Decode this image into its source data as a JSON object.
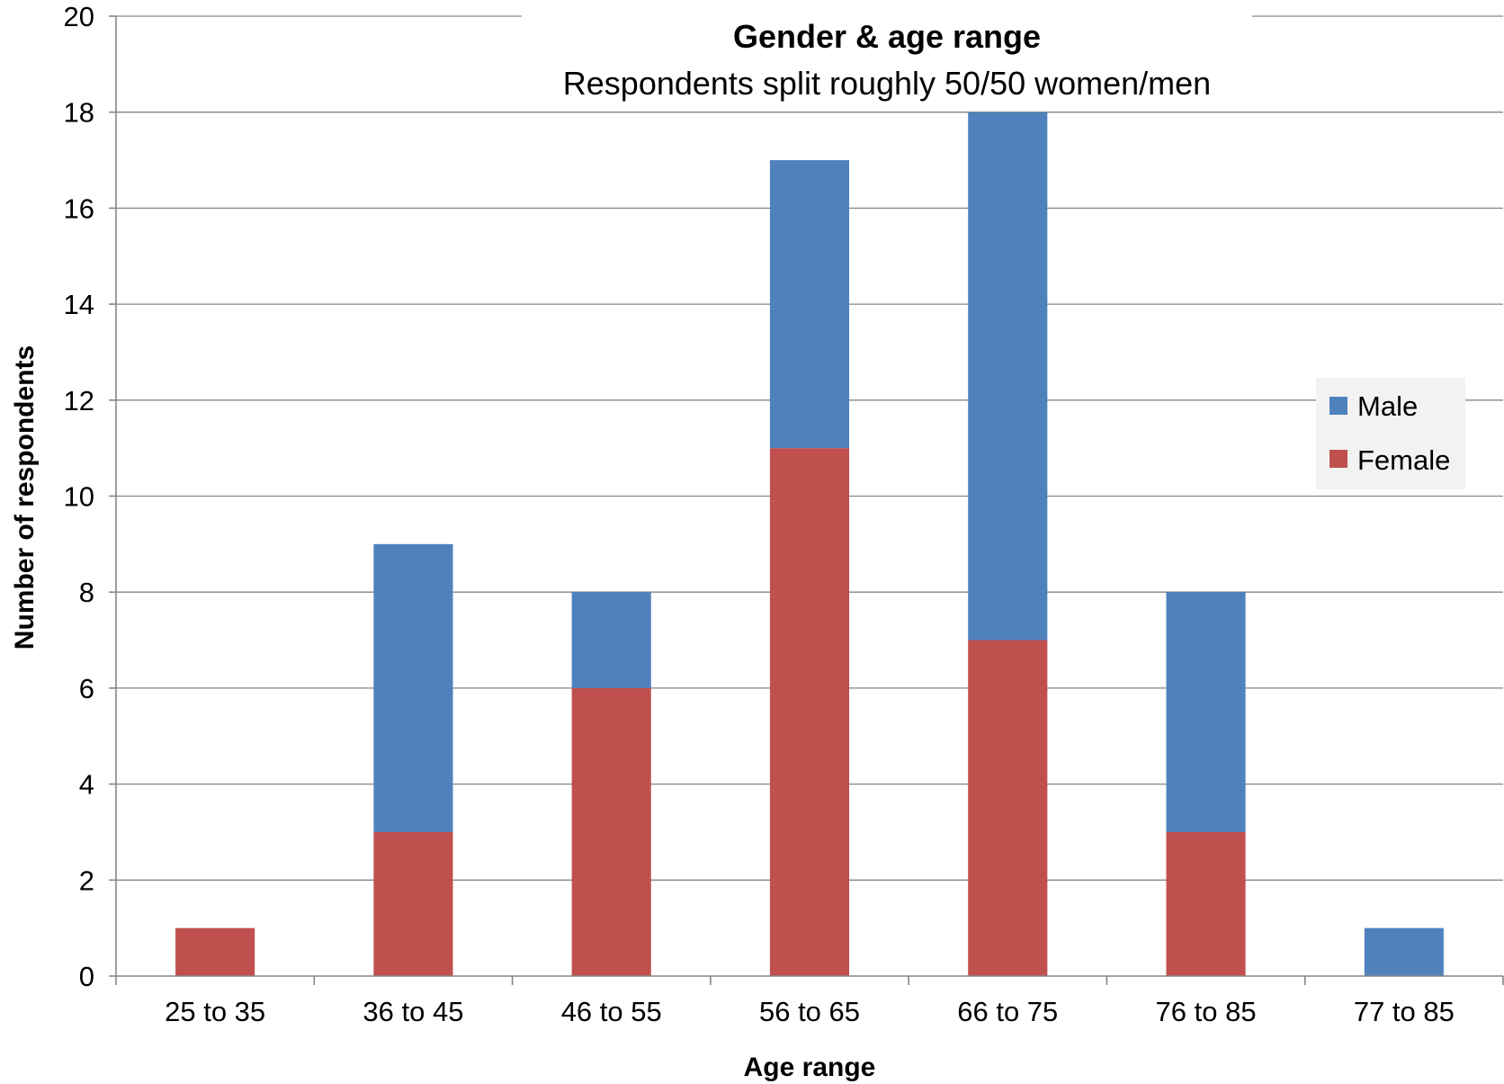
{
  "chart_data": {
    "type": "bar",
    "stacked": true,
    "title": "Gender & age range",
    "subtitle": "Respondents split roughly 50/50 women/men",
    "xlabel": "Age range",
    "ylabel": "Number of respondents",
    "categories": [
      "25 to 35",
      "36 to 45",
      "46 to 55",
      "56 to 65",
      "66 to 75",
      "76 to 85",
      "77 to 85"
    ],
    "series": [
      {
        "name": "Female",
        "color": "#C0504D",
        "values": [
          1,
          3,
          6,
          11,
          7,
          3,
          0
        ]
      },
      {
        "name": "Male",
        "color": "#4F81BD",
        "values": [
          0,
          6,
          2,
          6,
          11,
          5,
          1
        ]
      }
    ],
    "ylim": [
      0,
      20
    ],
    "yticks": [
      0,
      2,
      4,
      6,
      8,
      10,
      12,
      14,
      16,
      18,
      20
    ],
    "grid": true,
    "legend_position": "right",
    "legend_order": [
      "Male",
      "Female"
    ]
  }
}
